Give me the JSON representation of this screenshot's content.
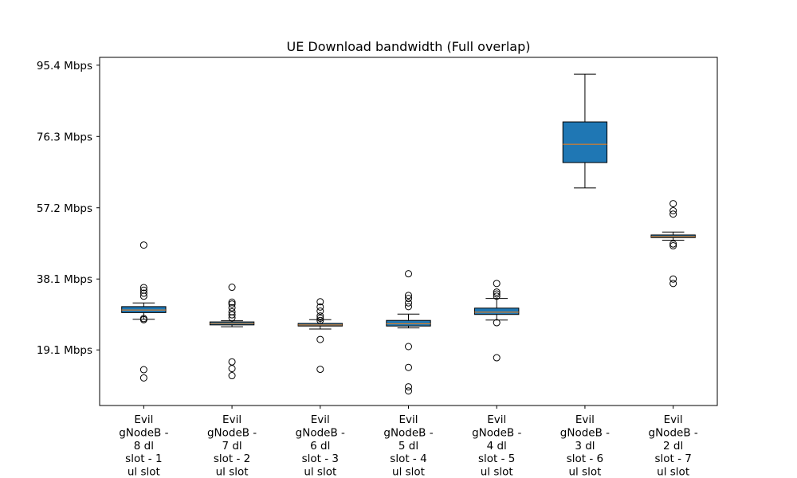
{
  "chart_data": {
    "type": "boxplot",
    "title": "UE Download bandwidth (Full overlap)",
    "xlabel": "",
    "ylabel": "",
    "ylim": [
      4.2,
      97.5
    ],
    "y_ticks": [
      {
        "value": 19.1,
        "label": "19.1 Mbps"
      },
      {
        "value": 38.1,
        "label": "38.1 Mbps"
      },
      {
        "value": 57.2,
        "label": "57.2 Mbps"
      },
      {
        "value": 76.3,
        "label": "76.3 Mbps"
      },
      {
        "value": 95.4,
        "label": "95.4 Mbps"
      }
    ],
    "grid": false,
    "box_fill": "#1f77b4",
    "median_color": "#ff7f0e",
    "categories": [
      [
        "Evil",
        "gNodeB -",
        "8 dl",
        "slot - 1",
        "ul slot"
      ],
      [
        "Evil",
        "gNodeB -",
        "7 dl",
        "slot - 2",
        "ul slot"
      ],
      [
        "Evil",
        "gNodeB -",
        "6 dl",
        "slot - 3",
        "ul slot"
      ],
      [
        "Evil",
        "gNodeB -",
        "5 dl",
        "slot - 4",
        "ul slot"
      ],
      [
        "Evil",
        "gNodeB -",
        "4 dl",
        "slot - 5",
        "ul slot"
      ],
      [
        "Evil",
        "gNodeB -",
        "3 dl",
        "slot - 6",
        "ul slot"
      ],
      [
        "Evil",
        "gNodeB -",
        "2 dl",
        "slot - 7",
        "ul slot"
      ]
    ],
    "boxes": [
      {
        "whislo": 27.3,
        "q1": 29.1,
        "med": 29.8,
        "q3": 30.7,
        "whishi": 31.7,
        "fliers": [
          11.6,
          13.8,
          27.2,
          27.5,
          33.5,
          34.3,
          35.1,
          35.8,
          47.2
        ]
      },
      {
        "whislo": 25.3,
        "q1": 25.8,
        "med": 26.2,
        "q3": 26.6,
        "whishi": 26.9,
        "fliers": [
          12.2,
          14.1,
          15.9,
          27.7,
          28.5,
          29.3,
          30.4,
          31.4,
          31.9,
          35.9
        ]
      },
      {
        "whislo": 24.7,
        "q1": 25.5,
        "med": 25.8,
        "q3": 26.2,
        "whishi": 27.2,
        "fliers": [
          13.9,
          21.9,
          27.0,
          27.6,
          28.2,
          29.5,
          30.6,
          32.0
        ]
      },
      {
        "whislo": 25.0,
        "q1": 25.5,
        "med": 26.1,
        "q3": 27.0,
        "whishi": 28.7,
        "fliers": [
          8.1,
          9.2,
          14.4,
          20.0,
          30.7,
          31.7,
          32.9,
          33.7,
          39.5
        ]
      },
      {
        "whislo": 27.1,
        "q1": 28.6,
        "med": 29.2,
        "q3": 30.3,
        "whishi": 32.9,
        "fliers": [
          17.0,
          26.4,
          33.5,
          34.1,
          34.6,
          36.9
        ]
      },
      {
        "whislo": 62.5,
        "q1": 69.3,
        "med": 74.2,
        "q3": 80.2,
        "whishi": 93.0,
        "fliers": []
      },
      {
        "whislo": 48.5,
        "q1": 49.2,
        "med": 49.5,
        "q3": 49.9,
        "whishi": 50.7,
        "fliers": [
          36.9,
          38.1,
          47.0,
          47.5,
          55.5,
          56.4,
          58.3
        ]
      }
    ]
  }
}
